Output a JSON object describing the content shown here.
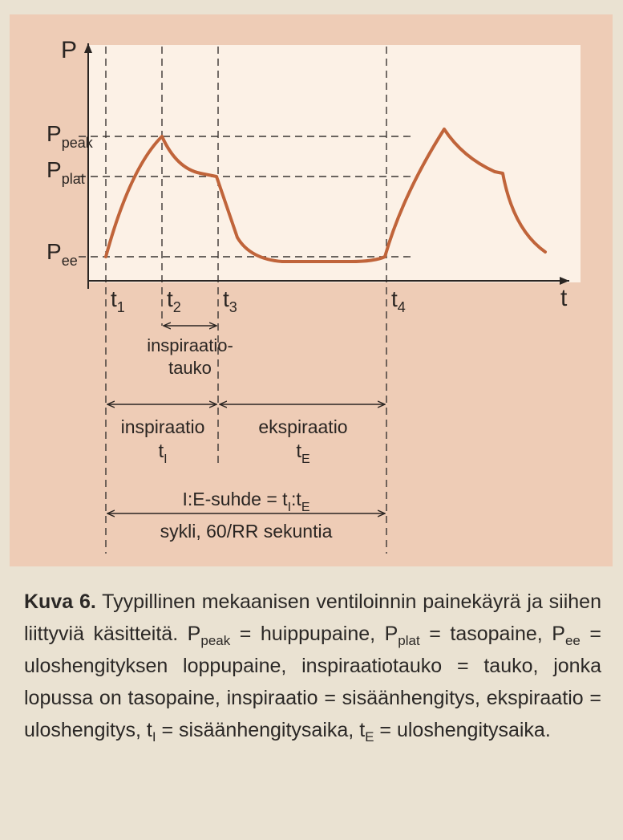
{
  "chart_data": {
    "type": "line",
    "title": "",
    "xlabel": "t",
    "ylabel": "P",
    "y_levels": [
      {
        "label": "P",
        "sub": "peak"
      },
      {
        "label": "P",
        "sub": "plat"
      },
      {
        "label": "P",
        "sub": "ee"
      }
    ],
    "time_marks": [
      {
        "label": "t",
        "sub": "1"
      },
      {
        "label": "t",
        "sub": "2"
      },
      {
        "label": "t",
        "sub": "3"
      },
      {
        "label": "t",
        "sub": "4"
      }
    ],
    "annotations": {
      "pause_line1": "inspiraatio-",
      "pause_line2": "tauko",
      "insp_label": "inspiraatio",
      "insp_sym": "t",
      "insp_sub": "I",
      "exp_label": "ekspiraatio",
      "exp_sym": "t",
      "exp_sub": "E",
      "ratio_prefix": "I:E-suhde = t",
      "ratio_sub1": "I",
      "ratio_mid": ":t",
      "ratio_sub2": "E",
      "cycle_label": "sykli, 60/RR sekuntia"
    },
    "curve_color": "#c0643a"
  },
  "caption": {
    "kuva": "Kuva 6.",
    "p1": " Tyypillinen mekaanisen ventiloinnin painekäyrä ja siihen liittyviä käsitteitä. P",
    "s1": "peak",
    "p2": " = huippupaine, P",
    "s2": "plat",
    "p3": " = tasopaine, P",
    "s3": "ee",
    "p4": " = uloshengityksen loppupaine, inspiraatiotauko = tauko, jonka lopussa on tasopaine, inspiraatio = sisäänhengitys, ekspiraatio = uloshengitys, t",
    "s4": "I",
    "p5": " = sisäänhengitysaika, t",
    "s5": "E",
    "p6": " = uloshengitysaika."
  }
}
